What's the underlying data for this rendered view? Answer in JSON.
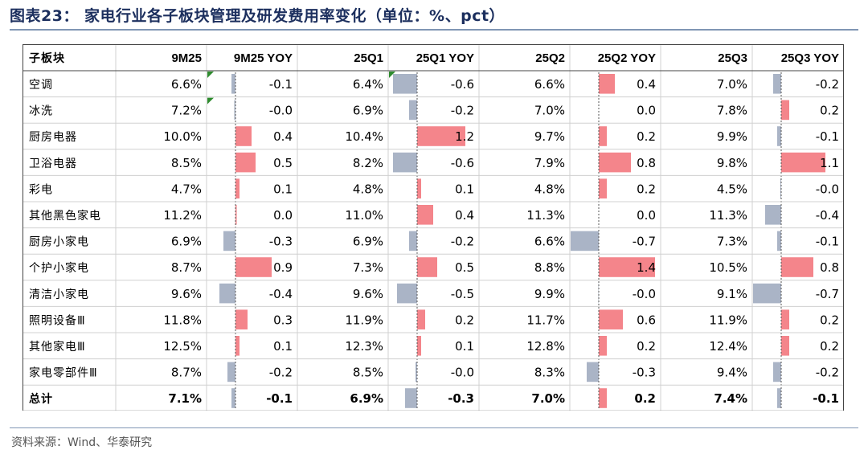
{
  "title": "图表23：  家电行业各子板块管理及研发费用率变化（单位：%、pct）",
  "source": "资料来源：Wind、华泰研究",
  "colors": {
    "positive_bar": "#f4858b",
    "negative_bar": "#aab4c6",
    "title": "#1c2f5e",
    "marker": "#2e8b2e"
  },
  "chart_data": {
    "type": "table",
    "columns": [
      "子板块",
      "9M25",
      "9M25 YOY",
      "25Q1",
      "25Q1 YOY",
      "25Q2",
      "25Q2 YOY",
      "25Q3",
      "25Q3 YOY"
    ],
    "rows": [
      {
        "name": "空调",
        "values": [
          "6.6%",
          "-0.1",
          "6.4%",
          "-0.6",
          "6.6%",
          "0.4",
          "7.0%",
          "-0.2"
        ]
      },
      {
        "name": "冰洗",
        "values": [
          "7.2%",
          "-0.0",
          "6.9%",
          "-0.2",
          "7.0%",
          "0.0",
          "7.8%",
          "0.2"
        ]
      },
      {
        "name": "厨房电器",
        "values": [
          "10.0%",
          "0.4",
          "10.4%",
          "1.2",
          "9.7%",
          "0.2",
          "9.9%",
          "-0.1"
        ]
      },
      {
        "name": "卫浴电器",
        "values": [
          "8.5%",
          "0.5",
          "8.2%",
          "-0.6",
          "7.9%",
          "0.8",
          "9.8%",
          "1.1"
        ]
      },
      {
        "name": "彩电",
        "values": [
          "4.7%",
          "0.1",
          "4.8%",
          "0.1",
          "4.8%",
          "0.2",
          "4.5%",
          "-0.0"
        ]
      },
      {
        "name": "其他黑色家电",
        "values": [
          "11.2%",
          "0.0",
          "11.0%",
          "0.4",
          "11.3%",
          "0.0",
          "11.3%",
          "-0.4"
        ]
      },
      {
        "name": "厨房小家电",
        "values": [
          "6.9%",
          "-0.3",
          "6.9%",
          "-0.2",
          "6.6%",
          "-0.7",
          "7.3%",
          "-0.1"
        ]
      },
      {
        "name": "个护小家电",
        "values": [
          "8.7%",
          "0.9",
          "7.3%",
          "0.5",
          "8.8%",
          "1.4",
          "10.5%",
          "0.8"
        ]
      },
      {
        "name": "清洁小家电",
        "values": [
          "9.6%",
          "-0.4",
          "9.6%",
          "-0.5",
          "9.9%",
          "-0.0",
          "9.1%",
          "-0.7"
        ]
      },
      {
        "name": "照明设备Ⅲ",
        "values": [
          "11.8%",
          "0.3",
          "11.9%",
          "0.2",
          "11.7%",
          "0.6",
          "11.9%",
          "0.2"
        ]
      },
      {
        "name": "其他家电Ⅲ",
        "values": [
          "12.5%",
          "0.1",
          "12.3%",
          "0.1",
          "12.8%",
          "0.2",
          "12.4%",
          "0.2"
        ]
      },
      {
        "name": "家电零部件Ⅲ",
        "values": [
          "8.7%",
          "-0.2",
          "8.5%",
          "-0.0",
          "8.3%",
          "-0.3",
          "9.4%",
          "-0.2"
        ]
      }
    ],
    "total": {
      "name": "总计",
      "values": [
        "7.1%",
        "-0.1",
        "6.9%",
        "-0.3",
        "7.0%",
        "0.2",
        "7.4%",
        "-0.1"
      ]
    },
    "yoy_bar_values": {
      "9M25 YOY": [
        -0.1,
        -0.03,
        0.4,
        0.5,
        0.1,
        0.03,
        -0.3,
        0.9,
        -0.4,
        0.3,
        0.1,
        -0.2,
        -0.1
      ],
      "25Q1 YOY": [
        -0.6,
        -0.2,
        1.2,
        -0.6,
        0.1,
        0.4,
        -0.2,
        0.5,
        -0.5,
        0.2,
        0.1,
        -0.04,
        -0.3
      ],
      "25Q2 YOY": [
        0.4,
        0.0,
        0.2,
        0.8,
        0.2,
        0.0,
        -0.7,
        1.4,
        -0.01,
        0.6,
        0.2,
        -0.3,
        0.2
      ],
      "25Q3 YOY": [
        -0.2,
        0.2,
        -0.1,
        1.1,
        -0.02,
        -0.4,
        -0.1,
        0.8,
        -0.7,
        0.2,
        0.2,
        -0.2,
        -0.1
      ]
    }
  }
}
